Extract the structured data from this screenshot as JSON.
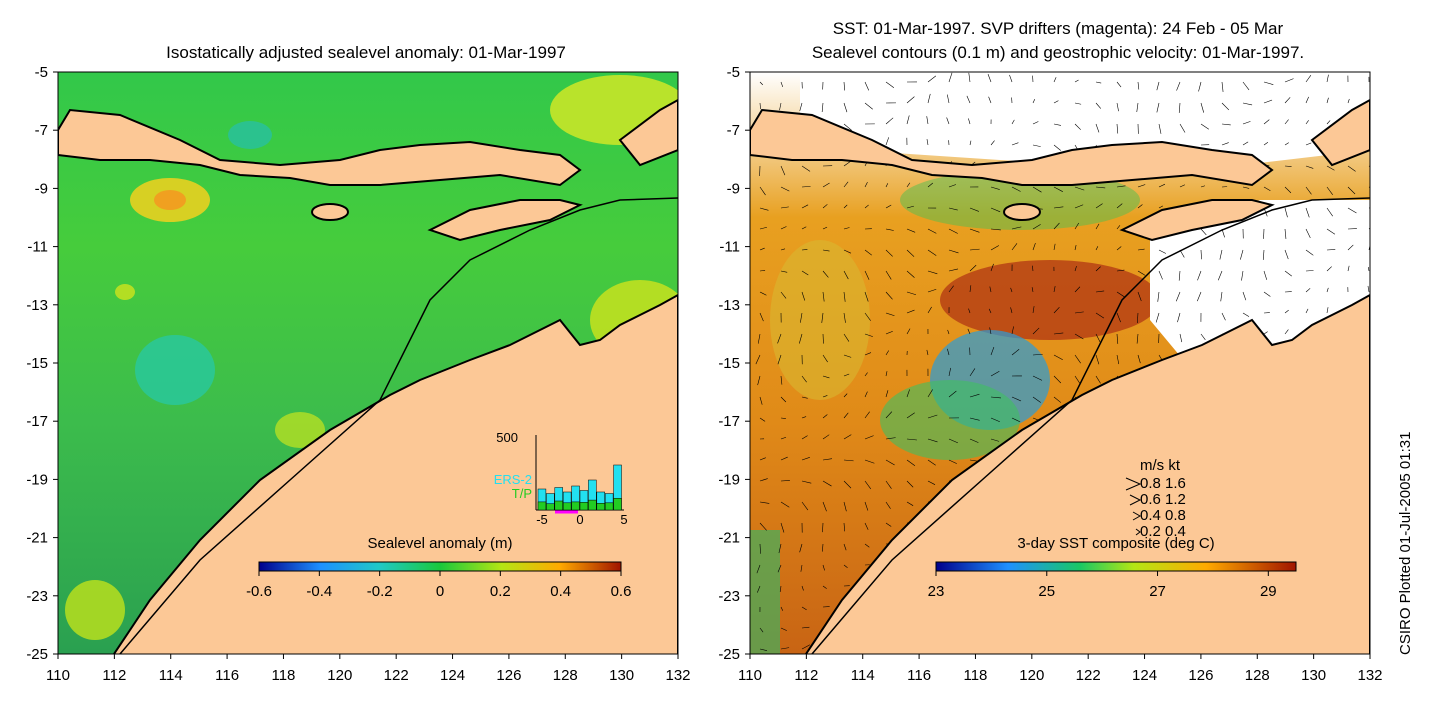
{
  "left_panel": {
    "title": "Isostatically adjusted sealevel anomaly: 01-Mar-1997",
    "colorbar_label": "Sealevel anomaly (m)",
    "colorbar_ticks": [
      "-0.6",
      "-0.4",
      "-0.2",
      "0",
      "0.2",
      "0.4",
      "0.6"
    ],
    "colorbar_colors": [
      "#00008b",
      "#1e90ff",
      "#20c8c8",
      "#19c83c",
      "#b4e614",
      "#ffaa00",
      "#a01400"
    ],
    "inset": {
      "ymax_label": "500",
      "legend": [
        "ERS-2",
        "T/P"
      ],
      "legend_colors": [
        "#22e0f0",
        "#22cc22"
      ],
      "x_ticks": [
        "-5",
        "0",
        "5"
      ],
      "ers2_values": [
        140,
        110,
        150,
        120,
        160,
        130,
        200,
        120,
        110,
        300
      ],
      "tp_values": [
        90,
        70,
        100,
        80,
        90,
        85,
        110,
        75,
        80,
        130
      ]
    }
  },
  "right_panel": {
    "title_line1": "SST: 01-Mar-1997. SVP drifters (magenta): 24 Feb - 05 Mar",
    "title_line2": "Sealevel contours (0.1 m) and geostrophic velocity: 01-Mar-1997.",
    "colorbar_label": "3-day SST composite (deg C)",
    "colorbar_ticks": [
      "23",
      "25",
      "27",
      "29"
    ],
    "colorbar_colors": [
      "#00008b",
      "#1e90ff",
      "#19c864",
      "#b4e614",
      "#ffaa00",
      "#a01400"
    ],
    "velocity_legend": {
      "header": "m/s  kt",
      "rows": [
        "0.8  1.6",
        "0.6  1.2",
        "0.4  0.8",
        "0.2  0.4"
      ]
    }
  },
  "axes": {
    "x_ticks": [
      "110",
      "112",
      "114",
      "116",
      "118",
      "120",
      "122",
      "124",
      "126",
      "128",
      "130",
      "132"
    ],
    "y_ticks": [
      "-5",
      "-7",
      "-9",
      "-11",
      "-13",
      "-15",
      "-17",
      "-19",
      "-21",
      "-23",
      "-25"
    ],
    "lon_range": [
      110,
      132
    ],
    "lat_range": [
      -25,
      -5
    ]
  },
  "credit": "CSIRO Plotted 01-Jul-2005 01:31",
  "colors": {
    "land": "#fcc896",
    "coast": "#000000"
  }
}
